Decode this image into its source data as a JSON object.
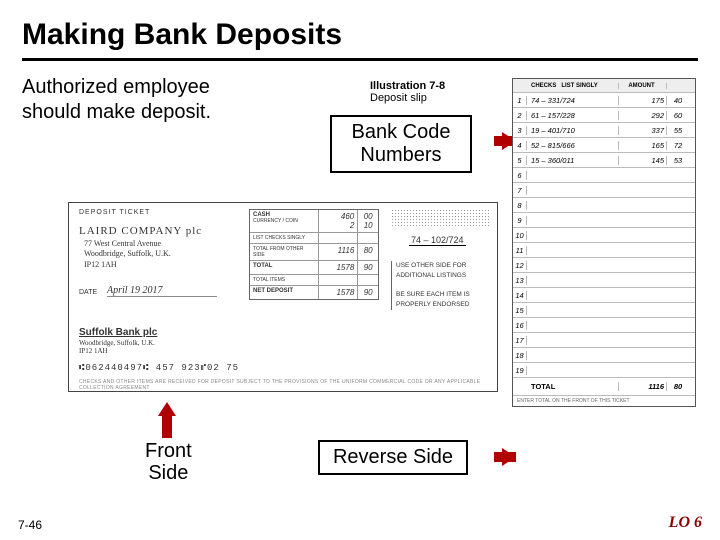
{
  "title": "Making Bank Deposits",
  "subtitle_l1": "Authorized employee",
  "subtitle_l2": "should make deposit.",
  "illustration": {
    "num": "Illustration 7-8",
    "caption": "Deposit slip"
  },
  "labels": {
    "bank_code_l1": "Bank Code",
    "bank_code_l2": "Numbers",
    "front_l1": "Front",
    "front_l2": "Side",
    "reverse": "Reverse Side"
  },
  "arrows": {
    "bank_code": "#b00000",
    "front": "#b00000",
    "reverse": "#b00000"
  },
  "footer": {
    "page": "7-46",
    "lo": "LO 6"
  },
  "ticket": {
    "header": "DEPOSIT TICKET",
    "company": "LAIRD COMPANY plc",
    "addr_l1": "77 West Central Avenue",
    "addr_l2": "Woodbridge, Suffolk, U.K.",
    "addr_l3": "IP12 1AH",
    "date_label": "DATE",
    "date_value": "April 19  2017",
    "bank": "Suffolk Bank plc",
    "bank_addr_l1": "Woodbridge, Suffolk, U.K.",
    "bank_addr_l2": "IP12 1AH",
    "micr": "⑆062440497⑆ 457 923⑈02   75",
    "fineprint": "CHECKS AND OTHER ITEMS ARE RECEIVED FOR DEPOSIT SUBJECT TO THE PROVISIONS OF THE UNIFORM COMMERCIAL CODE OR ANY APPLICABLE COLLECTION AGREEMENT",
    "routing": "74 – 102/724",
    "note_l1": "USE OTHER SIDE FOR",
    "note_l2": "ADDITIONAL LISTINGS",
    "note_l3": "BE SURE EACH ITEM IS",
    "note_l4": "PROPERLY ENDORSED",
    "grid": [
      {
        "label": "CASH",
        "sub": "",
        "v1": "460",
        "v2": "00",
        "tall": true,
        "sub2": "CURRENCY / COIN",
        "v1b": "2",
        "v2b": "10"
      },
      {
        "label": "",
        "sub": "LIST CHECKS SINGLY",
        "v1": "",
        "v2": ""
      },
      {
        "label": "",
        "sub": "TOTAL FROM OTHER SIDE",
        "v1": "1116",
        "v2": "80"
      },
      {
        "label": "TOTAL",
        "sub": "",
        "v1": "1578",
        "v2": "90"
      },
      {
        "label": "",
        "sub": "TOTAL ITEMS",
        "v1": "",
        "v2": ""
      },
      {
        "label": "NET DEPOSIT",
        "sub": "",
        "v1": "1578",
        "v2": "90"
      }
    ]
  },
  "reverse": {
    "head": {
      "c1": "CHECKS",
      "c2": "LIST SINGLY",
      "c3": "AMOUNT"
    },
    "rows": [
      {
        "n": "1",
        "chk": "74 – 331/724",
        "a1": "175",
        "a2": "40"
      },
      {
        "n": "2",
        "chk": "61 – 157/228",
        "a1": "292",
        "a2": "60"
      },
      {
        "n": "3",
        "chk": "19 – 401/710",
        "a1": "337",
        "a2": "55"
      },
      {
        "n": "4",
        "chk": "52 – 815/666",
        "a1": "165",
        "a2": "72"
      },
      {
        "n": "5",
        "chk": "15 – 360/011",
        "a1": "145",
        "a2": "53"
      },
      {
        "n": "6",
        "chk": "",
        "a1": "",
        "a2": ""
      },
      {
        "n": "7",
        "chk": "",
        "a1": "",
        "a2": ""
      },
      {
        "n": "8",
        "chk": "",
        "a1": "",
        "a2": ""
      },
      {
        "n": "9",
        "chk": "",
        "a1": "",
        "a2": ""
      },
      {
        "n": "10",
        "chk": "",
        "a1": "",
        "a2": ""
      },
      {
        "n": "11",
        "chk": "",
        "a1": "",
        "a2": ""
      },
      {
        "n": "12",
        "chk": "",
        "a1": "",
        "a2": ""
      },
      {
        "n": "13",
        "chk": "",
        "a1": "",
        "a2": ""
      },
      {
        "n": "14",
        "chk": "",
        "a1": "",
        "a2": ""
      },
      {
        "n": "15",
        "chk": "",
        "a1": "",
        "a2": ""
      },
      {
        "n": "16",
        "chk": "",
        "a1": "",
        "a2": ""
      },
      {
        "n": "17",
        "chk": "",
        "a1": "",
        "a2": ""
      },
      {
        "n": "18",
        "chk": "",
        "a1": "",
        "a2": ""
      },
      {
        "n": "19",
        "chk": "",
        "a1": "",
        "a2": ""
      }
    ],
    "total_label": "TOTAL",
    "total_a1": "1116",
    "total_a2": "80",
    "foot": "ENTER TOTAL ON THE FRONT OF THIS TICKET"
  }
}
